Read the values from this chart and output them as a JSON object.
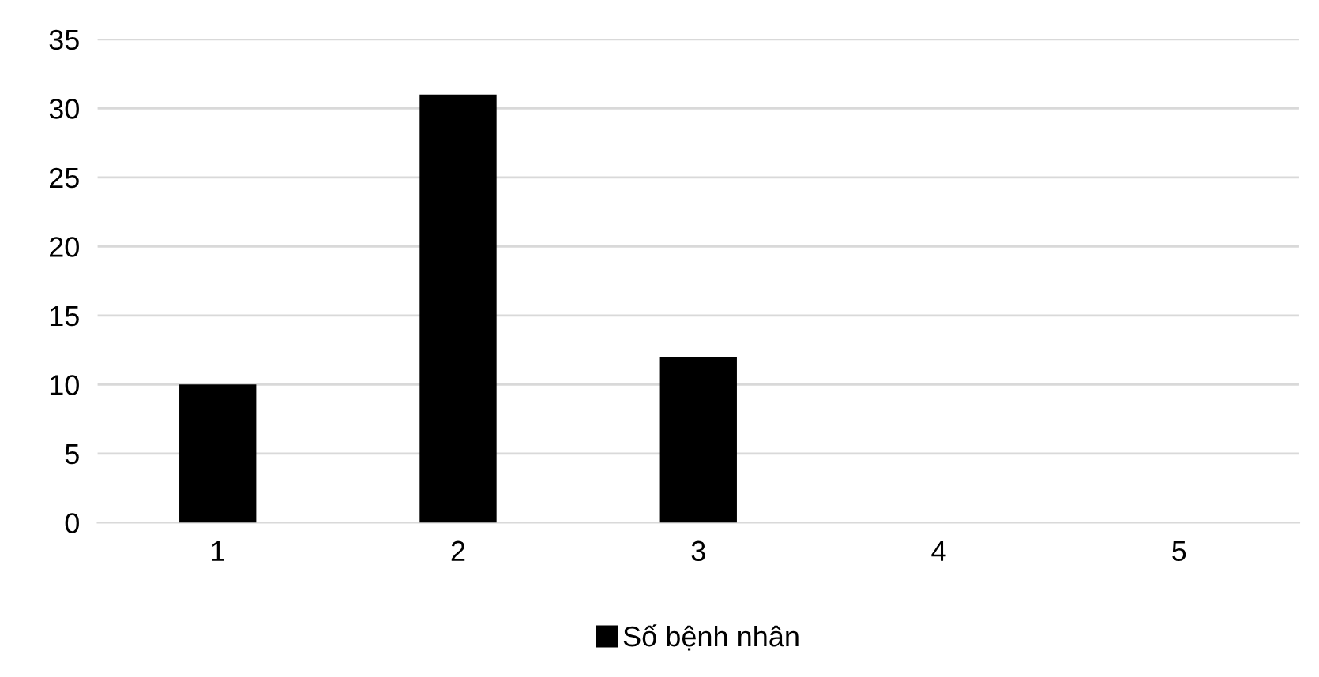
{
  "chart_data": {
    "type": "bar",
    "categories": [
      "1",
      "2",
      "3",
      "4",
      "5"
    ],
    "series": [
      {
        "name": "Số bệnh nhân",
        "color": "#000000",
        "values": [
          10,
          31,
          12,
          0,
          0
        ]
      }
    ],
    "ylim": [
      0,
      35
    ],
    "yticks": [
      0,
      5,
      10,
      15,
      20,
      25,
      30,
      35
    ],
    "grid": "y",
    "legend": "bottom"
  }
}
